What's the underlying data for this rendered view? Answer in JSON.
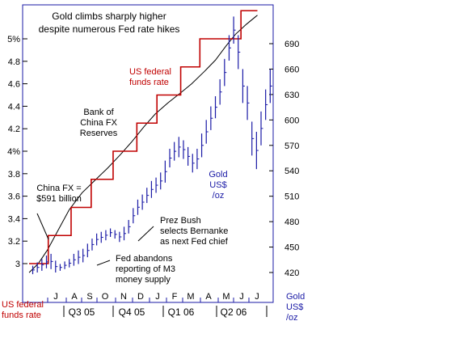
{
  "chart_data": {
    "type": "line",
    "title": "Gold climbs sharply higher\ndespite numerous Fed rate hikes",
    "x_labels": [
      "J",
      "A",
      "S",
      "O",
      "N",
      "D",
      "J",
      "F",
      "M",
      "A",
      "M",
      "J",
      "J"
    ],
    "quarter_labels": [
      "Q3 05",
      "Q4 05",
      "Q1 06",
      "Q2 06"
    ],
    "left_axis": {
      "tick_labels": [
        "5%",
        "4.8",
        "4.6",
        "4.4",
        "4.2",
        "4%",
        "3.8",
        "3.6",
        "3.4",
        "3.2",
        "3"
      ],
      "ticks": [
        5.0,
        4.8,
        4.6,
        4.4,
        4.2,
        4.0,
        3.8,
        3.6,
        3.4,
        3.2,
        3.0
      ],
      "ylim": [
        2.9,
        5.23
      ],
      "label": "US federal funds rate"
    },
    "right_axis": {
      "tick_labels": [
        "690",
        "660",
        "630",
        "600",
        "570",
        "540",
        "510",
        "480",
        "450",
        "420"
      ],
      "ticks": [
        690,
        660,
        630,
        600,
        570,
        540,
        510,
        480,
        450,
        420
      ],
      "ylim": [
        409,
        718
      ],
      "label": "Gold US$ /oz"
    },
    "xlim": [
      0,
      13
    ],
    "grid": false,
    "legend": "inline annotations",
    "fed_funds_steps": [
      [
        0,
        3.0
      ],
      [
        1.05,
        3.0
      ],
      [
        1.05,
        3.25
      ],
      [
        2.3,
        3.25
      ],
      [
        2.3,
        3.5
      ],
      [
        3.4,
        3.5
      ],
      [
        3.4,
        3.75
      ],
      [
        4.6,
        3.75
      ],
      [
        4.6,
        4.0
      ],
      [
        5.9,
        4.0
      ],
      [
        5.9,
        4.25
      ],
      [
        7.0,
        4.25
      ],
      [
        7.0,
        4.5
      ],
      [
        8.3,
        4.5
      ],
      [
        8.3,
        4.75
      ],
      [
        9.35,
        4.75
      ],
      [
        9.35,
        5.0
      ],
      [
        11.6,
        5.0
      ],
      [
        11.6,
        5.25
      ],
      [
        12.5,
        5.25
      ]
    ],
    "china_fx_reserves": [
      [
        0,
        2.92
      ],
      [
        0.5,
        3.0
      ],
      [
        1.0,
        3.12
      ],
      [
        1.6,
        3.3
      ],
      [
        2.2,
        3.48
      ],
      [
        2.9,
        3.63
      ],
      [
        3.6,
        3.74
      ],
      [
        4.3,
        3.85
      ],
      [
        5.0,
        3.97
      ],
      [
        5.6,
        4.08
      ],
      [
        6.3,
        4.22
      ],
      [
        6.9,
        4.33
      ],
      [
        7.6,
        4.43
      ],
      [
        8.3,
        4.52
      ],
      [
        8.9,
        4.6
      ],
      [
        9.6,
        4.71
      ],
      [
        10.2,
        4.81
      ],
      [
        10.8,
        4.94
      ],
      [
        11.3,
        5.04
      ],
      [
        11.9,
        5.13
      ],
      [
        12.5,
        5.21
      ]
    ],
    "gold_ohlc_bars": [
      [
        0.2,
        418,
        428
      ],
      [
        0.45,
        420,
        432
      ],
      [
        0.7,
        422,
        436
      ],
      [
        0.95,
        425,
        440
      ],
      [
        1.2,
        424,
        442
      ],
      [
        1.45,
        420,
        434
      ],
      [
        1.7,
        422,
        430
      ],
      [
        1.95,
        424,
        433
      ],
      [
        2.2,
        426,
        436
      ],
      [
        2.45,
        428,
        442
      ],
      [
        2.7,
        430,
        446
      ],
      [
        2.95,
        432,
        448
      ],
      [
        3.2,
        438,
        454
      ],
      [
        3.45,
        446,
        460
      ],
      [
        3.7,
        452,
        466
      ],
      [
        3.95,
        455,
        468
      ],
      [
        4.2,
        458,
        470
      ],
      [
        4.45,
        462,
        472
      ],
      [
        4.7,
        460,
        470
      ],
      [
        4.95,
        456,
        468
      ],
      [
        5.2,
        458,
        474
      ],
      [
        5.45,
        466,
        482
      ],
      [
        5.7,
        478,
        496
      ],
      [
        5.95,
        488,
        506
      ],
      [
        6.2,
        494,
        512
      ],
      [
        6.45,
        502,
        520
      ],
      [
        6.7,
        508,
        528
      ],
      [
        6.95,
        514,
        532
      ],
      [
        7.2,
        518,
        538
      ],
      [
        7.45,
        526,
        552
      ],
      [
        7.7,
        544,
        566
      ],
      [
        7.95,
        552,
        574
      ],
      [
        8.2,
        556,
        580
      ],
      [
        8.45,
        554,
        576
      ],
      [
        8.7,
        546,
        568
      ],
      [
        8.95,
        538,
        560
      ],
      [
        9.2,
        542,
        566
      ],
      [
        9.45,
        556,
        584
      ],
      [
        9.7,
        572,
        600
      ],
      [
        9.95,
        588,
        616
      ],
      [
        10.2,
        602,
        628
      ],
      [
        10.45,
        618,
        648
      ],
      [
        10.7,
        640,
        672
      ],
      [
        10.95,
        670,
        700
      ],
      [
        11.2,
        690,
        722
      ],
      [
        11.45,
        660,
        700
      ],
      [
        11.7,
        620,
        660
      ],
      [
        11.95,
        600,
        640
      ],
      [
        12.2,
        558,
        598
      ],
      [
        12.45,
        542,
        586
      ],
      [
        12.7,
        570,
        610
      ],
      [
        12.95,
        600,
        636
      ],
      [
        13.2,
        620,
        660
      ],
      [
        13.45,
        630,
        675
      ]
    ],
    "annotations": [
      {
        "text": "US federal\nfunds rate",
        "color": "#c00000"
      },
      {
        "text": "Bank of\nChina FX\nReserves",
        "color": "#000000"
      },
      {
        "text": "Gold\nUS$\n/oz",
        "color": "#1a1aa6"
      },
      {
        "text": "China FX =\n$591 billion",
        "color": "#000000"
      },
      {
        "text": "Prez Bush\nselects Bernanke\nas next Fed chief",
        "color": "#000000"
      },
      {
        "text": "Fed abandons\nreporting of M3\nmoney supply",
        "color": "#000000"
      }
    ],
    "bottom_left_label": "US federal\nfunds rate",
    "bottom_right_label": "Gold\nUS$\n/oz",
    "colors": {
      "fed_funds": "#c00000",
      "china_fx": "#000000",
      "gold": "#1a1aa6",
      "frame": "#1a1aa6",
      "left_ticks": "#000000",
      "right_ticks": "#000000"
    }
  }
}
